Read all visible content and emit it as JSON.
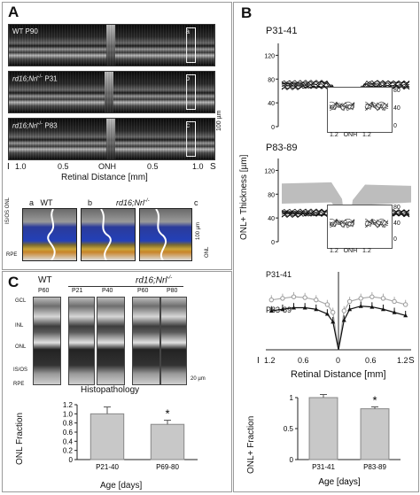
{
  "panel_a": {
    "letter": "A",
    "oct_labels": [
      {
        "prefix": "WT",
        "age": "P90",
        "tag": "a"
      },
      {
        "prefix": "rd16;Nrl",
        "sup": "-/-",
        "age": "P31",
        "tag": "b"
      },
      {
        "prefix": "rd16;Nrl",
        "sup": "-/-",
        "age": "P83",
        "tag": "c"
      }
    ],
    "scale_bar": "100 µm",
    "x_ticks": [
      "1.0",
      "0.5",
      "ONH",
      "0.5",
      "1.0"
    ],
    "x_left": "I",
    "x_right": "S",
    "x_label": "Retinal Distance [mm]",
    "zoom_labels": [
      {
        "tag": "a",
        "name": "WT"
      },
      {
        "tag": "b",
        "name": "rd16;Nrl",
        "sup": "-/-"
      },
      {
        "tag": "c",
        "name": ""
      }
    ],
    "layer_labels": [
      "ONL",
      "IS/OS",
      "RPE"
    ],
    "zoom_scale": "100 µm",
    "onl_label": "ONL"
  },
  "panel_b": {
    "letter": "B",
    "plot1_title": "P31-41",
    "plot2_title": "P83-89",
    "y_label": "ONL+ Thickness [µm]",
    "y_ticks": [
      "0",
      "20",
      "40",
      "60",
      "80",
      "100",
      "120",
      "140"
    ],
    "inset_ticks": [
      "80",
      "40",
      "0"
    ],
    "inset_x": [
      "1.2",
      "ONH",
      "1.2"
    ],
    "mean_labels": [
      "P31-41",
      "P83-89"
    ],
    "x_ticks": [
      "1.2",
      "0.6",
      "0",
      "0.6",
      "1.2"
    ],
    "x_left": "I",
    "x_right": "S",
    "x_label": "Retinal Distance [mm]",
    "bar_ylabel": "ONL+ Fraction",
    "bar_yticks": [
      "0",
      "0.5",
      "1"
    ],
    "star": "*"
  },
  "panel_c": {
    "letter": "C",
    "wt_label": "WT",
    "group_label": "rd16;Nrl",
    "group_sup": "-/-",
    "ages": [
      "P60",
      "P21",
      "P40",
      "P60",
      "P80"
    ],
    "layers": [
      "GCL",
      "INL",
      "ONL",
      "IS/OS",
      "RPE"
    ],
    "scale_bar": "20 µm",
    "bar_title": "Histopathology",
    "bar_ylabel": "ONL Fraction",
    "bar_yticks": [
      "0",
      "0.2",
      "0.4",
      "0.6",
      "0.8",
      "1.0",
      "1.2"
    ],
    "bar_xlabel": "Age [days]",
    "star": "*"
  },
  "chart_data": [
    {
      "type": "bar",
      "categories": [
        "P21-40",
        "P69-80"
      ],
      "values": [
        1.0,
        0.77
      ],
      "errors": [
        0.15,
        0.09
      ],
      "title": "Histopathology",
      "xlabel": "Age [days]",
      "ylabel": "ONL Fraction",
      "ylim": [
        0,
        1.2
      ]
    },
    {
      "type": "bar",
      "categories": [
        "P31-41",
        "P83-89"
      ],
      "values": [
        1.0,
        0.82
      ],
      "errors": [
        0.05,
        0.03
      ],
      "title": "",
      "xlabel": "Age [days]",
      "ylabel": "ONL+ Fraction",
      "ylim": [
        0,
        1
      ]
    },
    {
      "type": "line",
      "x": [
        -1.2,
        -1.0,
        -0.8,
        -0.6,
        -0.4,
        -0.2,
        -0.1,
        0,
        0.1,
        0.2,
        0.4,
        0.6,
        0.8,
        1.0,
        1.2
      ],
      "series": [
        {
          "name": "P31-41",
          "values": [
            64,
            66,
            68,
            67,
            64,
            58,
            48,
            0,
            50,
            62,
            66,
            68,
            66,
            62,
            58
          ]
        },
        {
          "name": "P83-89",
          "values": [
            50,
            52,
            54,
            54,
            52,
            46,
            36,
            0,
            38,
            52,
            56,
            55,
            52,
            48,
            44
          ]
        }
      ],
      "title": "",
      "xlabel": "Retinal Distance [mm]",
      "ylabel": "ONL+ Thickness [µm]",
      "ylim": [
        0,
        100
      ]
    }
  ]
}
